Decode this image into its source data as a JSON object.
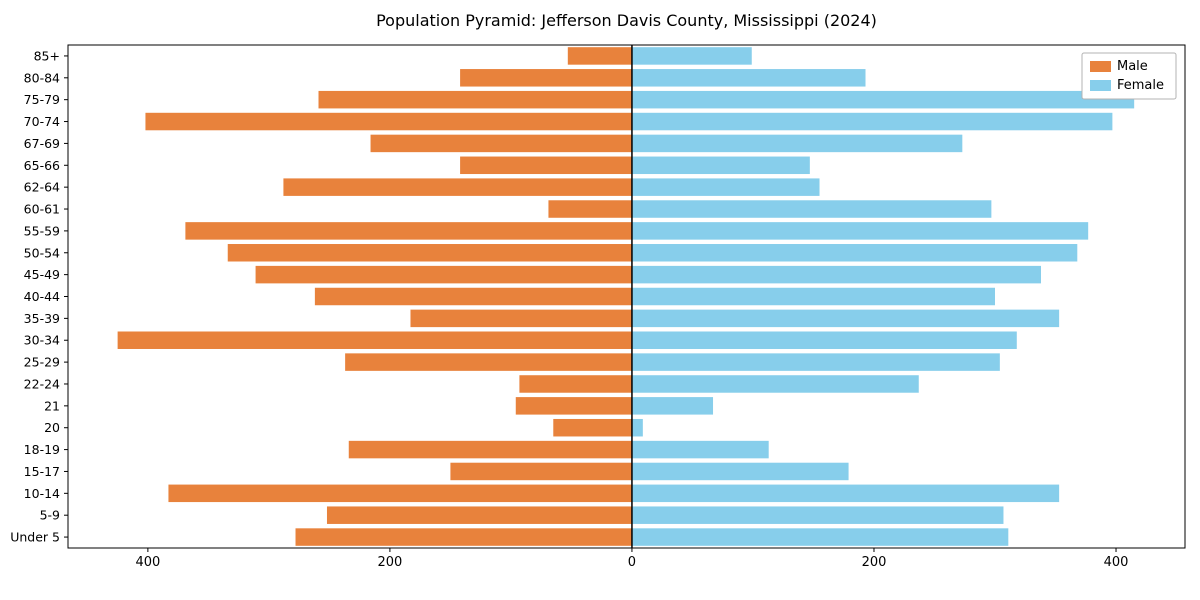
{
  "title": "Population Pyramid: Jefferson Davis County, Mississippi (2024)",
  "legend": {
    "male_label": "Male",
    "female_label": "Female"
  },
  "colors": {
    "male": "#e8823c",
    "female": "#87ceeb",
    "axis": "#000000",
    "legend_border": "#b3b3b3",
    "background": "#ffffff"
  },
  "chart_data": {
    "type": "bar",
    "orientation": "horizontal_pyramid",
    "title": "Population Pyramid: Jefferson Davis County, Mississippi (2024)",
    "categories_top_to_bottom": [
      "85+",
      "80-84",
      "75-79",
      "70-74",
      "67-69",
      "65-66",
      "62-64",
      "60-61",
      "55-59",
      "50-54",
      "45-49",
      "40-44",
      "35-39",
      "30-34",
      "25-29",
      "22-24",
      "21",
      "20",
      "18-19",
      "15-17",
      "10-14",
      "5-9",
      "Under 5"
    ],
    "series": [
      {
        "name": "Male",
        "side": "left",
        "values": [
          53,
          142,
          259,
          402,
          216,
          142,
          288,
          69,
          369,
          334,
          311,
          262,
          183,
          425,
          237,
          93,
          96,
          65,
          234,
          150,
          383,
          252,
          278
        ]
      },
      {
        "name": "Female",
        "side": "right",
        "values": [
          99,
          193,
          415,
          397,
          273,
          147,
          155,
          297,
          377,
          368,
          338,
          300,
          353,
          318,
          304,
          237,
          67,
          9,
          113,
          179,
          353,
          307,
          311
        ]
      }
    ],
    "x_ticks": [
      -400,
      -200,
      0,
      200,
      400
    ],
    "x_tick_labels": [
      "400",
      "200",
      "0",
      "200",
      "400"
    ],
    "xlim": [
      -466,
      457
    ],
    "bar_height_fraction": 0.8,
    "zero_line": true,
    "grid": false,
    "legend_position": "upper right",
    "xlabel": "",
    "ylabel": ""
  }
}
